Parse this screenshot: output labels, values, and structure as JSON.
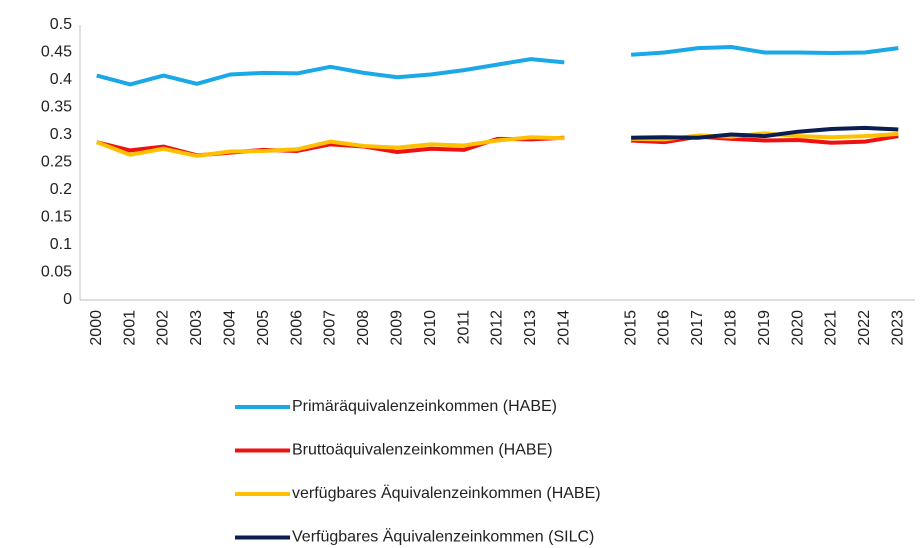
{
  "chart_data": {
    "type": "line",
    "categories": [
      "2000",
      "2001",
      "2002",
      "2003",
      "2004",
      "2005",
      "2006",
      "2007",
      "2008",
      "2009",
      "2010",
      "2011",
      "2012",
      "2013",
      "2014",
      null,
      "2015",
      "2016",
      "2017",
      "2018",
      "2019",
      "2020",
      "2021",
      "2022",
      "2023"
    ],
    "series": [
      {
        "name": "Primäräquivalenzeinkommen (HABE)",
        "color": "#1aa8e6",
        "values": [
          0.408,
          0.392,
          0.408,
          0.393,
          0.41,
          0.413,
          0.412,
          0.424,
          0.413,
          0.405,
          0.41,
          0.418,
          0.428,
          0.438,
          0.432,
          null,
          0.446,
          0.45,
          0.458,
          0.46,
          0.45,
          0.45,
          0.449,
          0.45,
          0.458
        ]
      },
      {
        "name": "Bruttoäquivalenzeinkommen (HABE)",
        "color": "#ee1111",
        "values": [
          0.287,
          0.272,
          0.279,
          0.263,
          0.268,
          0.273,
          0.271,
          0.283,
          0.279,
          0.269,
          0.275,
          0.273,
          0.293,
          0.292,
          0.295,
          null,
          0.29,
          0.287,
          0.297,
          0.293,
          0.29,
          0.291,
          0.286,
          0.288,
          0.298
        ]
      },
      {
        "name": "verfügbares Äquivalenzeinkommen (HABE)",
        "color": "#ffc000",
        "values": [
          0.287,
          0.264,
          0.275,
          0.262,
          0.27,
          0.271,
          0.274,
          0.288,
          0.28,
          0.277,
          0.283,
          0.281,
          0.29,
          0.296,
          0.294,
          null,
          0.293,
          0.292,
          0.299,
          0.297,
          0.303,
          0.298,
          0.296,
          0.298,
          0.302
        ]
      },
      {
        "name": "Verfügbares Äquivalenzeinkommen (SILC)",
        "color": "#0a1f4f",
        "values": [
          null,
          null,
          null,
          null,
          null,
          null,
          null,
          null,
          null,
          null,
          null,
          null,
          null,
          null,
          null,
          null,
          0.295,
          0.296,
          0.295,
          0.301,
          0.298,
          0.306,
          0.311,
          0.313,
          0.31
        ]
      }
    ],
    "ylim": [
      0,
      0.5
    ],
    "yticks": [
      0,
      0.05,
      0.1,
      0.15,
      0.2,
      0.25,
      0.3,
      0.35,
      0.4,
      0.45,
      0.5
    ],
    "grid": false,
    "legend": "bottom"
  }
}
